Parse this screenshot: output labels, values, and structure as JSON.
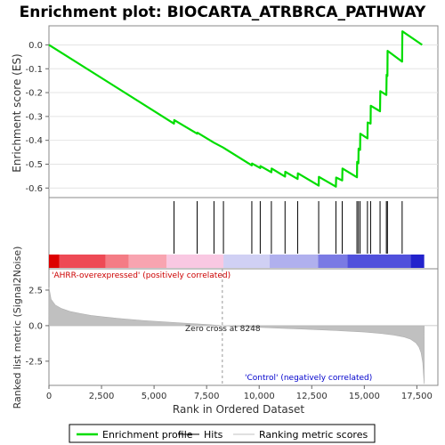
{
  "title": "Enrichment plot: BIOCARTA_ATRBRCA_PATHWAY",
  "colors": {
    "enrichment": "#00dd00",
    "hits": "#000000",
    "metric_fill": "#c0c0c0",
    "pos_label": "#cc0000",
    "neg_label": "#0000cc",
    "zero_line": "#999999",
    "frame": "#888888"
  },
  "chart_data": [
    {
      "type": "line",
      "name": "enrichment-score-panel",
      "ylabel": "Enrichment score (ES)",
      "ylim": [
        -0.64,
        0.08
      ],
      "yticks": [
        0.0,
        -0.1,
        -0.2,
        -0.3,
        -0.4,
        -0.5,
        -0.6
      ],
      "ytick_labels": [
        "0.0",
        "-0.1",
        "-0.2",
        "-0.3",
        "-0.4",
        "-0.5",
        "-0.6"
      ],
      "xlim": [
        0,
        18500
      ],
      "series": [
        {
          "name": "Enrichment profile",
          "x": [
            0,
            5950,
            5960,
            7050,
            7060,
            7850,
            8280,
            9650,
            9660,
            10050,
            10060,
            10580,
            10590,
            11230,
            11240,
            11830,
            11840,
            12830,
            12840,
            13650,
            13660,
            13950,
            13960,
            14650,
            14660,
            14720,
            14730,
            14800,
            14810,
            15150,
            15160,
            15300,
            15310,
            15750,
            15760,
            16050,
            16060,
            16100,
            16110,
            16800,
            16810,
            17750
          ],
          "y": [
            0.0,
            -0.33,
            -0.315,
            -0.372,
            -0.368,
            -0.41,
            -0.43,
            -0.505,
            -0.497,
            -0.516,
            -0.508,
            -0.534,
            -0.518,
            -0.552,
            -0.532,
            -0.562,
            -0.538,
            -0.59,
            -0.553,
            -0.594,
            -0.556,
            -0.568,
            -0.518,
            -0.555,
            -0.49,
            -0.496,
            -0.435,
            -0.44,
            -0.372,
            -0.392,
            -0.325,
            -0.33,
            -0.255,
            -0.278,
            -0.194,
            -0.21,
            -0.125,
            -0.13,
            -0.025,
            -0.07,
            0.057,
            0.0
          ]
        }
      ]
    },
    {
      "type": "scatter",
      "name": "hits-panel",
      "series": [
        {
          "name": "Hits",
          "x": [
            5950,
            7050,
            7850,
            8300,
            9650,
            10050,
            10580,
            11230,
            11830,
            12830,
            13650,
            13950,
            14650,
            14720,
            14800,
            15150,
            15300,
            15750,
            16050,
            16100,
            16800
          ]
        }
      ]
    },
    {
      "type": "heatmap",
      "name": "rank-color-bar",
      "segments": [
        {
          "x0": 0,
          "x1": 500,
          "color": "#dd0000"
        },
        {
          "x0": 500,
          "x1": 2700,
          "color": "#ee4a55"
        },
        {
          "x0": 2700,
          "x1": 3800,
          "color": "#f47c85"
        },
        {
          "x0": 3800,
          "x1": 5600,
          "color": "#f8a4b0"
        },
        {
          "x0": 5600,
          "x1": 8300,
          "color": "#f9c8e2"
        },
        {
          "x0": 8300,
          "x1": 10500,
          "color": "#d0d0f4"
        },
        {
          "x0": 10500,
          "x1": 12800,
          "color": "#b0b0ee"
        },
        {
          "x0": 12800,
          "x1": 14200,
          "color": "#7a7ae4"
        },
        {
          "x0": 14200,
          "x1": 17200,
          "color": "#5050dc"
        },
        {
          "x0": 17200,
          "x1": 17850,
          "color": "#2222cc"
        }
      ]
    },
    {
      "type": "area",
      "name": "ranked-metric-panel",
      "ylabel": "Ranked list metric (Signal2Noise)",
      "xlabel": "Rank in Ordered Dataset",
      "ylim": [
        -4.2,
        4.0
      ],
      "yticks": [
        2.5,
        0.0,
        -2.5
      ],
      "ytick_labels": [
        "2.5",
        "0.0",
        "-2.5"
      ],
      "xlim": [
        0,
        18500
      ],
      "xticks": [
        0,
        2500,
        5000,
        7500,
        10000,
        12500,
        15000,
        17500
      ],
      "xtick_labels": [
        "0",
        "2,500",
        "5,000",
        "7,500",
        "10,000",
        "12,500",
        "15,000",
        "17,500"
      ],
      "x": [
        0,
        100,
        300,
        600,
        1000,
        1500,
        2000,
        2700,
        3500,
        4500,
        5500,
        6500,
        7500,
        8248,
        9000,
        10000,
        11000,
        12000,
        13000,
        14000,
        15000,
        15800,
        16400,
        16900,
        17200,
        17450,
        17600,
        17700,
        17780,
        17850
      ],
      "values": [
        2.7,
        1.85,
        1.45,
        1.2,
        1.0,
        0.85,
        0.72,
        0.6,
        0.48,
        0.36,
        0.26,
        0.17,
        0.09,
        0.0,
        -0.06,
        -0.12,
        -0.18,
        -0.24,
        -0.3,
        -0.37,
        -0.45,
        -0.55,
        -0.66,
        -0.8,
        -0.95,
        -1.2,
        -1.5,
        -1.9,
        -2.6,
        -4.1
      ],
      "annotations": {
        "zero_cross": "Zero cross at 8248",
        "zero_cross_x": 8248,
        "positive": "'AHRR-overexpressed' (positively correlated)",
        "negative": "'Control' (negatively correlated)"
      }
    }
  ],
  "legend": {
    "items": [
      {
        "label": "Enrichment profile",
        "color": "#00dd00"
      },
      {
        "label": "Hits",
        "color": "#000000"
      },
      {
        "label": "Ranking metric scores",
        "color": "#c0c0c0"
      }
    ]
  }
}
